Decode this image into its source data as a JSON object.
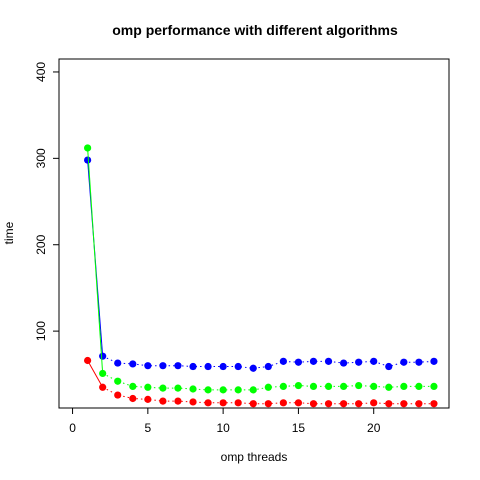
{
  "chart_data": {
    "type": "line",
    "title": "omp performance with different algorithms",
    "xlabel": "omp threads",
    "ylabel": "time",
    "xlim": [
      -0.9,
      25.0
    ],
    "ylim": [
      11,
      415
    ],
    "xticks": [
      0,
      5,
      10,
      15,
      20
    ],
    "yticks": [
      100,
      200,
      300,
      400
    ],
    "grid": false,
    "legend": "none",
    "x": [
      1,
      2,
      3,
      4,
      5,
      6,
      7,
      8,
      9,
      10,
      11,
      12,
      13,
      14,
      15,
      16,
      17,
      18,
      19,
      20,
      21,
      22,
      23,
      24
    ],
    "series": [
      {
        "color": "#0000ff",
        "line_style": "dotted",
        "first_segment": "solid",
        "values": [
          298,
          71,
          63,
          62,
          60,
          60,
          60,
          59,
          59,
          59,
          59,
          57,
          59,
          65,
          64,
          65,
          65,
          63,
          64,
          65,
          59,
          64,
          64,
          65
        ]
      },
      {
        "color": "#00ff00",
        "line_style": "dotted",
        "first_segment": "solid",
        "values": [
          312,
          51,
          42,
          36,
          35,
          34,
          34,
          33,
          32,
          32,
          32,
          32,
          35,
          36,
          37,
          36,
          36,
          36,
          37,
          36,
          35,
          36,
          36,
          36
        ]
      },
      {
        "color": "#ff0000",
        "line_style": "dotted",
        "first_segment": "solid",
        "values": [
          66,
          35,
          26,
          22,
          21,
          19,
          19,
          18,
          17,
          17,
          17,
          16,
          16,
          17,
          17,
          16,
          16,
          16,
          16,
          17,
          16,
          16,
          16,
          16
        ]
      }
    ]
  }
}
